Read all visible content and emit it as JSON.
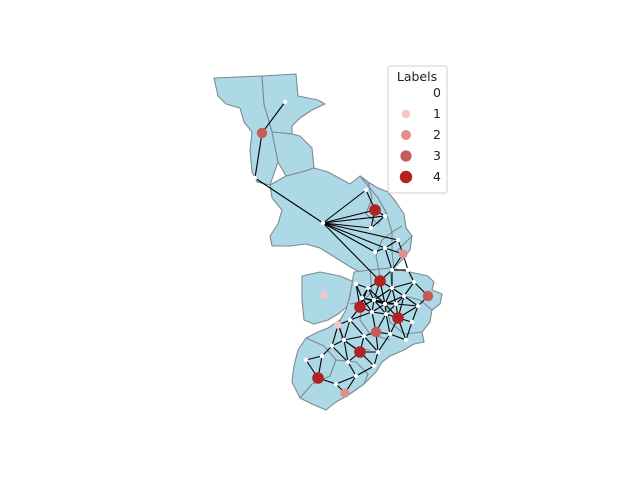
{
  "map": {
    "legend": {
      "title": "Labels",
      "entries": [
        {
          "label": "0",
          "color": "#ffffff"
        },
        {
          "label": "1",
          "color": "#f4c7c7"
        },
        {
          "label": "2",
          "color": "#e08f8f"
        },
        {
          "label": "3",
          "color": "#c45c5c"
        },
        {
          "label": "4",
          "color": "#b22222"
        }
      ]
    },
    "colors": {
      "region_fill": "#add8e6",
      "region_border": "#7d8a90",
      "edge": "#000000",
      "label_0": "#ffffff",
      "label_1": "#f4c7c7",
      "label_2": "#e08f8f",
      "label_3": "#c45c5c",
      "label_4": "#b22222"
    }
  }
}
